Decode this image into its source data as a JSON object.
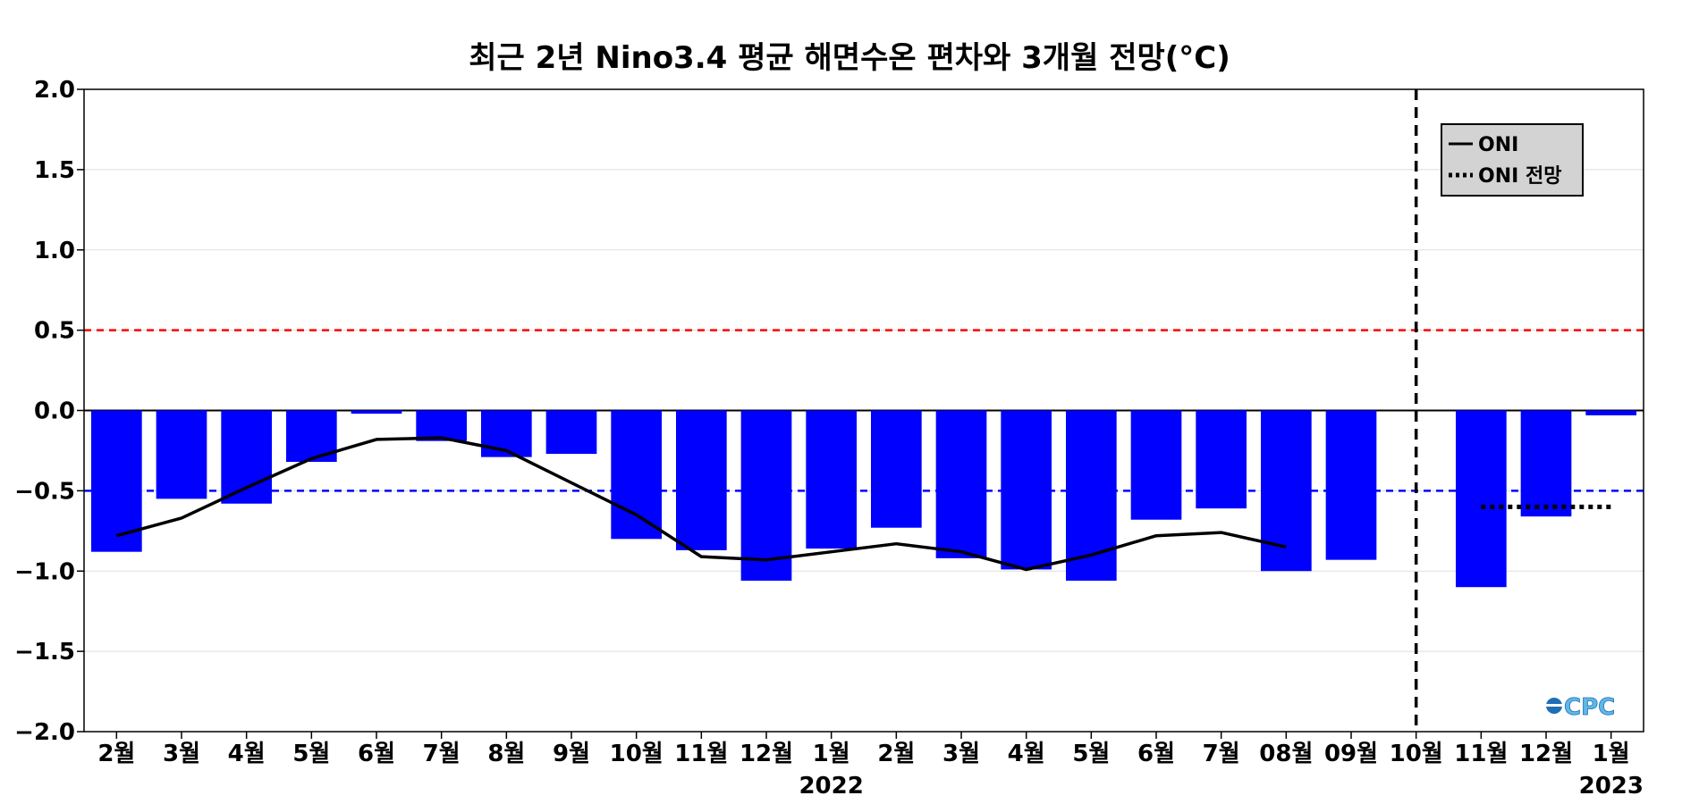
{
  "chart_data": {
    "type": "bar",
    "title": "최근 2년 Nino3.4 평균 해면수온 편차와 3개월 전망(°C)",
    "xlabel": "",
    "ylabel": "",
    "ylim": [
      -2.0,
      2.0
    ],
    "y_ticks": [
      "2.0",
      "1.5",
      "1.0",
      "0.5",
      "0.0",
      "−0.5",
      "−1.0",
      "−1.5",
      "−2.0"
    ],
    "y_tick_values": [
      2.0,
      1.5,
      1.0,
      0.5,
      0.0,
      -0.5,
      -1.0,
      -1.5,
      -2.0
    ],
    "categories": [
      "2월",
      "3월",
      "4월",
      "5월",
      "6월",
      "7월",
      "8월",
      "9월",
      "10월",
      "11월",
      "12월",
      "1월",
      "2월",
      "3월",
      "4월",
      "5월",
      "6월",
      "7월",
      "08월",
      "09월",
      "10월",
      "11월",
      "12월",
      "1월"
    ],
    "year_labels": [
      {
        "text": "2022",
        "category_index": 11
      },
      {
        "text": "2023",
        "category_index": 23
      }
    ],
    "bars": {
      "color": "#0000ff",
      "values": [
        -0.88,
        -0.55,
        -0.58,
        -0.32,
        -0.02,
        -0.19,
        -0.29,
        -0.27,
        -0.8,
        -0.87,
        -1.06,
        -0.86,
        -0.73,
        -0.92,
        -0.99,
        -1.06,
        -0.68,
        -0.61,
        -1.0,
        -0.93,
        null,
        -1.1,
        -0.66,
        -0.03
      ]
    },
    "series": [
      {
        "name": "ONI",
        "style": "solid",
        "color": "#000000",
        "values": [
          -0.78,
          -0.67,
          -0.48,
          -0.3,
          -0.18,
          -0.17,
          -0.25,
          -0.45,
          -0.65,
          -0.91,
          -0.93,
          -0.88,
          -0.83,
          -0.88,
          -0.99,
          -0.9,
          -0.78,
          -0.76,
          -0.85,
          null,
          null,
          null,
          null,
          null
        ]
      },
      {
        "name": "ONI 전망",
        "style": "dotted",
        "color": "#000000",
        "values": [
          null,
          null,
          null,
          null,
          null,
          null,
          null,
          null,
          null,
          null,
          null,
          null,
          null,
          null,
          null,
          null,
          null,
          null,
          null,
          null,
          null,
          -0.6,
          -0.6,
          -0.6
        ]
      }
    ],
    "reference_lines": [
      {
        "y": 0.5,
        "color": "#ff0000",
        "style": "dashed"
      },
      {
        "y": -0.5,
        "color": "#0000ff",
        "style": "dashed"
      },
      {
        "y": 0.0,
        "color": "#000000",
        "style": "solid"
      }
    ],
    "forecast_divider": {
      "category_index": 20,
      "style": "dashed",
      "color": "#000000"
    },
    "grid": true,
    "legend_position": "top-right",
    "logo_text": "CPC"
  }
}
